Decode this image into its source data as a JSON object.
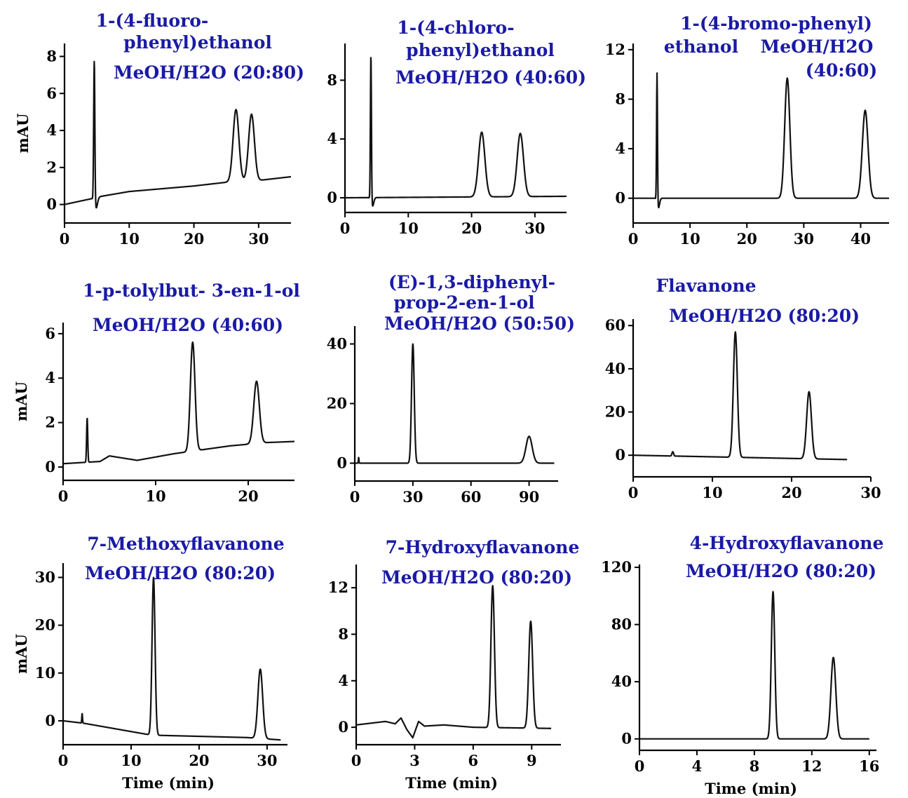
{
  "chart_data": [
    {
      "type": "line",
      "title_lines": [
        "1-(4-fluoro-",
        "phenyl)ethanol",
        "MeOH/H2O (20:80)"
      ],
      "ylabel": "mAU",
      "xlabel": "",
      "xlim": [
        0,
        35
      ],
      "ylim": [
        -1,
        8.7
      ],
      "xticks": [
        0,
        10,
        20,
        30
      ],
      "yticks": [
        0,
        2,
        4,
        6,
        8
      ],
      "baseline": [
        [
          0,
          0
        ],
        [
          4,
          0.3
        ],
        [
          5,
          0.4
        ],
        [
          10,
          0.7
        ],
        [
          20,
          1.0
        ],
        [
          25,
          1.2
        ],
        [
          30,
          1.3
        ],
        [
          35,
          1.5
        ]
      ],
      "peaks": [
        {
          "t": 4.6,
          "h": 7.7,
          "w": 0.09,
          "dip": -0.6
        },
        {
          "t": 26.5,
          "h": 3.9,
          "w": 0.45
        },
        {
          "t": 28.9,
          "h": 3.6,
          "w": 0.45
        }
      ]
    },
    {
      "type": "line",
      "title_lines": [
        "1-(4-chloro-",
        "phenyl)ethanol",
        "MeOH/H2O (40:60)"
      ],
      "ylabel": "",
      "xlabel": "",
      "xlim": [
        0,
        35
      ],
      "ylim": [
        -1,
        10.5
      ],
      "xticks": [
        0,
        10,
        20,
        30
      ],
      "yticks": [
        0,
        4,
        8
      ],
      "baseline": [
        [
          0,
          0
        ],
        [
          35,
          0.1
        ]
      ],
      "peaks": [
        {
          "t": 4.1,
          "h": 10.0,
          "w": 0.08,
          "dip": -0.6
        },
        {
          "t": 21.6,
          "h": 4.4,
          "w": 0.5
        },
        {
          "t": 27.7,
          "h": 4.3,
          "w": 0.5
        }
      ]
    },
    {
      "type": "line",
      "title_lines": [
        "1-(4-bromo-phenyl)",
        "ethanol",
        "MeOH/H2O",
        "(40:60)"
      ],
      "ylabel": "",
      "xlabel": "",
      "xlim": [
        0,
        45
      ],
      "ylim": [
        -2,
        12.5
      ],
      "xticks": [
        0,
        10,
        20,
        30,
        40
      ],
      "yticks": [
        0,
        4,
        8,
        12
      ],
      "baseline": [
        [
          0,
          0
        ],
        [
          45,
          0
        ]
      ],
      "peaks": [
        {
          "t": 4.2,
          "h": 10.5,
          "w": 0.08,
          "dip": -0.8
        },
        {
          "t": 27.1,
          "h": 9.7,
          "w": 0.45
        },
        {
          "t": 40.8,
          "h": 7.1,
          "w": 0.5
        }
      ]
    },
    {
      "type": "line",
      "title_lines": [
        "1-p-tolylbut- 3-en-1-ol",
        "MeOH/H2O (40:60)"
      ],
      "ylabel": "mAU",
      "xlabel": "",
      "xlim": [
        0,
        25
      ],
      "ylim": [
        -0.6,
        6.5
      ],
      "xticks": [
        0,
        10,
        20
      ],
      "yticks": [
        0,
        2,
        4,
        6
      ],
      "baseline": [
        [
          0,
          0.15
        ],
        [
          4,
          0.25
        ],
        [
          5,
          0.5
        ],
        [
          8,
          0.3
        ],
        [
          12,
          0.6
        ],
        [
          18,
          0.95
        ],
        [
          22,
          1.1
        ],
        [
          25,
          1.15
        ]
      ],
      "peaks": [
        {
          "t": 2.6,
          "h": 2.0,
          "w": 0.06
        },
        {
          "t": 14.0,
          "h": 4.9,
          "w": 0.25
        },
        {
          "t": 20.9,
          "h": 2.8,
          "w": 0.3
        }
      ]
    },
    {
      "type": "line",
      "title_lines": [
        "(E)-1,3-diphenyl-",
        "prop-2-en-1-ol",
        "MeOH/H2O (50:50)"
      ],
      "ylabel": "",
      "xlabel": "",
      "xlim": [
        0,
        105
      ],
      "ylim": [
        -6,
        46
      ],
      "xticks": [
        0,
        30,
        60,
        90
      ],
      "yticks": [
        0,
        20,
        40
      ],
      "baseline": [
        [
          0,
          0
        ],
        [
          103,
          0
        ]
      ],
      "peaks": [
        {
          "t": 2.0,
          "h": 2.0,
          "w": 0.15
        },
        {
          "t": 30.0,
          "h": 40.0,
          "w": 0.7
        },
        {
          "t": 90.0,
          "h": 9.0,
          "w": 1.6
        }
      ]
    },
    {
      "type": "line",
      "title_lines": [
        "Flavanone",
        "MeOH/H2O (80:20)"
      ],
      "ylabel": "",
      "xlabel": "",
      "xlim": [
        0,
        30
      ],
      "ylim": [
        -10,
        63
      ],
      "xticks": [
        0,
        10,
        20,
        30
      ],
      "yticks": [
        0,
        20,
        40,
        60
      ],
      "baseline": [
        [
          0,
          0
        ],
        [
          27,
          -2
        ]
      ],
      "peaks": [
        {
          "t": 5.0,
          "h": 2.0,
          "w": 0.1
        },
        {
          "t": 12.9,
          "h": 58.0,
          "w": 0.25
        },
        {
          "t": 22.2,
          "h": 31.0,
          "w": 0.3
        }
      ]
    },
    {
      "type": "line",
      "title_lines": [
        "7-Methoxyflavanone",
        "MeOH/H2O (80:20)"
      ],
      "ylabel": "mAU",
      "xlabel": "Time (min)",
      "xlim": [
        0,
        33
      ],
      "ylim": [
        -5,
        33
      ],
      "xticks": [
        0,
        10,
        20,
        30
      ],
      "yticks": [
        0,
        10,
        20,
        30
      ],
      "baseline": [
        [
          0,
          0
        ],
        [
          3,
          -0.5
        ],
        [
          13,
          -3
        ],
        [
          27,
          -3.5
        ],
        [
          32,
          -4
        ]
      ],
      "peaks": [
        {
          "t": 2.8,
          "h": 2.0,
          "w": 0.05
        },
        {
          "t": 13.3,
          "h": 33.0,
          "w": 0.22
        },
        {
          "t": 29.0,
          "h": 14.5,
          "w": 0.35
        }
      ]
    },
    {
      "type": "line",
      "title_lines": [
        "7-Hydroxyflavanone",
        "MeOH/H2O (80:20)"
      ],
      "ylabel": "",
      "xlabel": "Time (min)",
      "xlim": [
        0,
        10.5
      ],
      "ylim": [
        -1.5,
        14
      ],
      "xticks": [
        0,
        3,
        6,
        9
      ],
      "yticks": [
        0,
        4,
        8,
        12
      ],
      "baseline": [
        [
          0,
          0.2
        ],
        [
          1.5,
          0.5
        ],
        [
          2.0,
          0.3
        ],
        [
          2.3,
          0.8
        ],
        [
          2.6,
          -0.2
        ],
        [
          2.9,
          -0.9
        ],
        [
          3.2,
          0.5
        ],
        [
          3.5,
          0.1
        ],
        [
          4.5,
          0.2
        ],
        [
          6,
          0
        ],
        [
          10,
          -0.1
        ]
      ],
      "peaks": [
        {
          "t": 7.0,
          "h": 12.2,
          "w": 0.09
        },
        {
          "t": 8.95,
          "h": 9.2,
          "w": 0.1
        }
      ]
    },
    {
      "type": "line",
      "title_lines": [
        "4-Hydroxyflavanone",
        "MeOH/H2O (80:20)"
      ],
      "ylabel": "",
      "xlabel": "Time (min)",
      "xlim": [
        0,
        16.5
      ],
      "ylim": [
        -8,
        122
      ],
      "xticks": [
        0,
        4,
        8,
        12,
        16
      ],
      "yticks": [
        0,
        40,
        80,
        120
      ],
      "baseline": [
        [
          0,
          0
        ],
        [
          16,
          0
        ]
      ],
      "peaks": [
        {
          "t": 9.3,
          "h": 103.0,
          "w": 0.12
        },
        {
          "t": 13.5,
          "h": 57.0,
          "w": 0.17
        }
      ]
    }
  ]
}
